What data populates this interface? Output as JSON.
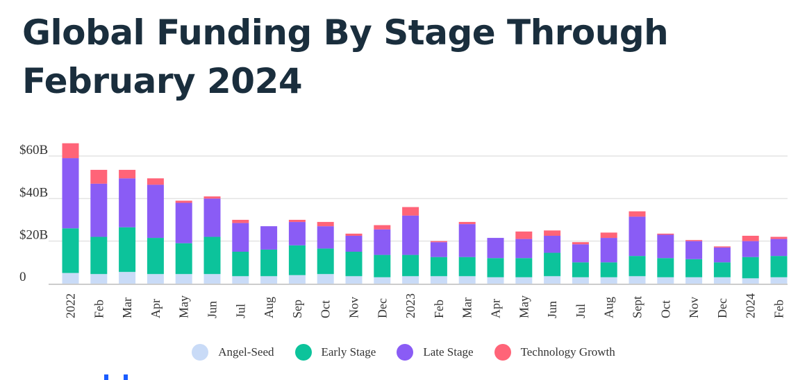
{
  "title_line1": "Global Funding By Stage Through",
  "title_line2": "February 2024",
  "chart_data": {
    "type": "bar",
    "stacked": true,
    "title": "Global Funding By Stage Through February 2024",
    "categories": [
      "2022",
      "Feb",
      "Mar",
      "Apr",
      "May",
      "Jun",
      "Jul",
      "Aug",
      "Sep",
      "Oct",
      "Nov",
      "Dec",
      "2023",
      "Feb",
      "Mar",
      "Apr",
      "May",
      "Jun",
      "Jul",
      "Aug",
      "Sept",
      "Oct",
      "Nov",
      "Dec",
      "2024",
      "Feb"
    ],
    "series": [
      {
        "name": "Angel-Seed",
        "color": "#c9dbf7",
        "values": [
          5,
          4.5,
          5.5,
          4.5,
          4.5,
          4.5,
          3.5,
          3.5,
          4,
          4.5,
          3.5,
          3,
          3.5,
          3.5,
          3.5,
          3,
          3,
          3.5,
          3,
          3,
          3.5,
          3,
          3,
          3,
          2.5,
          3
        ]
      },
      {
        "name": "Early Stage",
        "color": "#0cc39b",
        "values": [
          21,
          17.5,
          21,
          17,
          14.5,
          17.5,
          11.5,
          12.5,
          14,
          12,
          11.5,
          10.5,
          10,
          9,
          9,
          9,
          9,
          11,
          7,
          7,
          9.5,
          9,
          8.5,
          7,
          10,
          10
        ]
      },
      {
        "name": "Late Stage",
        "color": "#8a5cf5",
        "values": [
          33,
          25,
          23,
          25,
          19,
          18,
          13.5,
          11,
          11,
          10.5,
          7.5,
          12,
          18.5,
          7,
          15.5,
          9.5,
          9,
          8,
          8.5,
          11.5,
          18.5,
          11,
          8.5,
          7,
          7.5,
          8
        ]
      },
      {
        "name": "Technology Growth",
        "color": "#ff6478",
        "values": [
          7,
          6.5,
          4,
          3,
          1,
          1,
          1.5,
          0,
          1,
          2,
          1,
          2,
          4,
          0.5,
          1,
          0,
          3.5,
          2.5,
          1,
          2.5,
          2.5,
          0.5,
          0.5,
          0.5,
          2.5,
          1
        ]
      }
    ],
    "ytick_labels": [
      "0",
      "$20B",
      "$40B",
      "$60B"
    ],
    "ytick_values": [
      0,
      20,
      40,
      60
    ],
    "ylim": [
      0,
      60
    ],
    "xlabel": "",
    "ylabel": "",
    "grid": true,
    "legend_position": "bottom-center"
  }
}
